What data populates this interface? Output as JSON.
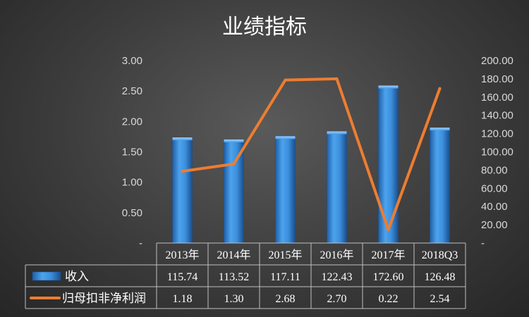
{
  "chart_data": {
    "type": "bar+line",
    "title": "业绩指标",
    "categories": [
      "2013年",
      "2014年",
      "2015年",
      "2016年",
      "2017年",
      "2018Q3"
    ],
    "series": [
      {
        "name": "收入",
        "type": "bar",
        "axis": "right",
        "values": [
          115.74,
          113.52,
          117.11,
          122.43,
          172.6,
          126.48
        ],
        "value_labels": [
          "115.74",
          "113.52",
          "117.11",
          "122.43",
          "172.60",
          "126.48"
        ],
        "color": "#3a8fd8"
      },
      {
        "name": "归母扣非净利润",
        "type": "line",
        "axis": "left",
        "values": [
          1.18,
          1.3,
          2.68,
          2.7,
          0.22,
          2.54
        ],
        "value_labels": [
          "1.18",
          "1.30",
          "2.68",
          "2.70",
          "0.22",
          "2.54"
        ],
        "color": "#ed7d31"
      }
    ],
    "y_left": {
      "range": [
        0,
        3
      ],
      "ticks": [
        0,
        0.5,
        1,
        1.5,
        2,
        2.5,
        3
      ],
      "tick_labels": [
        "-",
        "0.50",
        "1.00",
        "1.50",
        "2.00",
        "2.50",
        "3.00"
      ]
    },
    "y_right": {
      "range": [
        0,
        200
      ],
      "ticks": [
        0,
        20,
        40,
        60,
        80,
        100,
        120,
        140,
        160,
        180,
        200
      ],
      "tick_labels": [
        "-",
        "20.00",
        "40.00",
        "60.00",
        "80.00",
        "100.00",
        "120.00",
        "140.00",
        "160.00",
        "180.00",
        "200.00"
      ]
    },
    "grid": false,
    "legend": "data-table-bottom"
  }
}
